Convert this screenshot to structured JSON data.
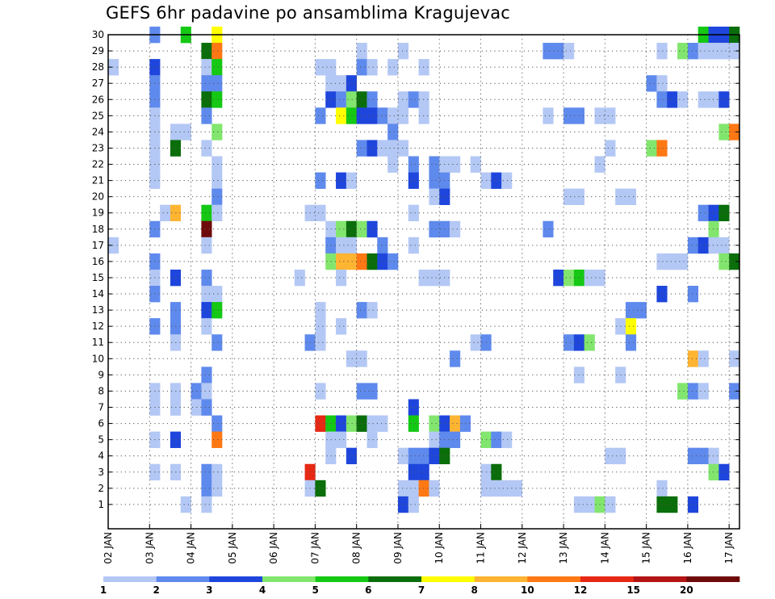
{
  "chart_data": {
    "type": "heatmap",
    "title": "GEFS 6hr padavine po ansamblima Kragujevac",
    "xlabel": "",
    "ylabel": "",
    "x_ticks": [
      "02 JAN",
      "03 JAN",
      "04 JAN",
      "05 JAN",
      "06 JAN",
      "07 JAN",
      "08 JAN",
      "09 JAN",
      "10 JAN",
      "11 JAN",
      "12 JAN",
      "13 JAN",
      "14 JAN",
      "15 JAN",
      "16 JAN",
      "17 JAN"
    ],
    "y_ticks": [
      "1",
      "2",
      "3",
      "4",
      "5",
      "6",
      "7",
      "8",
      "9",
      "10",
      "11",
      "12",
      "13",
      "14",
      "15",
      "16",
      "17",
      "18",
      "19",
      "20",
      "21",
      "22",
      "23",
      "24",
      "25",
      "26",
      "27",
      "28",
      "29",
      "30"
    ],
    "y_range": [
      0,
      30
    ],
    "grid": true,
    "time_steps": 61,
    "levels": [
      "1",
      "2",
      "3",
      "4",
      "5",
      "6",
      "7",
      "8",
      "10",
      "12",
      "15",
      "20"
    ],
    "colors": [
      "#b4c8f5",
      "#5f8aed",
      "#1e46dc",
      "#82e66e",
      "#14c814",
      "#0a6e0a",
      "#ffff00",
      "#ffb432",
      "#ff7814",
      "#e62814",
      "#b41414",
      "#6e0a0a"
    ],
    "cells": [
      [
        30,
        4,
        1
      ],
      [
        30,
        7,
        4
      ],
      [
        30,
        10,
        6
      ],
      [
        30,
        57,
        4
      ],
      [
        30,
        58,
        2
      ],
      [
        30,
        59,
        2
      ],
      [
        30,
        60,
        5
      ],
      [
        29,
        9,
        5
      ],
      [
        29,
        10,
        8
      ],
      [
        29,
        24,
        0
      ],
      [
        29,
        28,
        0
      ],
      [
        29,
        42,
        1
      ],
      [
        29,
        43,
        1
      ],
      [
        29,
        44,
        0
      ],
      [
        29,
        53,
        0
      ],
      [
        29,
        55,
        3
      ],
      [
        29,
        56,
        1
      ],
      [
        29,
        57,
        0
      ],
      [
        29,
        58,
        0
      ],
      [
        29,
        59,
        0
      ],
      [
        29,
        60,
        0
      ],
      [
        28,
        0,
        0
      ],
      [
        28,
        4,
        2
      ],
      [
        28,
        9,
        0
      ],
      [
        28,
        10,
        4
      ],
      [
        28,
        20,
        0
      ],
      [
        28,
        21,
        0
      ],
      [
        28,
        24,
        1
      ],
      [
        28,
        25,
        0
      ],
      [
        28,
        27,
        0
      ],
      [
        28,
        30,
        0
      ],
      [
        27,
        4,
        1
      ],
      [
        27,
        9,
        1
      ],
      [
        27,
        10,
        1
      ],
      [
        27,
        21,
        0
      ],
      [
        27,
        22,
        0
      ],
      [
        27,
        23,
        2
      ],
      [
        27,
        52,
        1
      ],
      [
        27,
        53,
        0
      ],
      [
        26,
        4,
        1
      ],
      [
        26,
        9,
        5
      ],
      [
        26,
        10,
        4
      ],
      [
        26,
        21,
        2
      ],
      [
        26,
        22,
        1
      ],
      [
        26,
        23,
        3
      ],
      [
        26,
        24,
        5
      ],
      [
        26,
        25,
        1
      ],
      [
        26,
        28,
        0
      ],
      [
        26,
        29,
        1
      ],
      [
        26,
        30,
        0
      ],
      [
        26,
        53,
        1
      ],
      [
        26,
        54,
        2
      ],
      [
        26,
        55,
        0
      ],
      [
        26,
        57,
        0
      ],
      [
        26,
        58,
        0
      ],
      [
        26,
        59,
        2
      ],
      [
        25,
        4,
        0
      ],
      [
        25,
        9,
        1
      ],
      [
        25,
        20,
        1
      ],
      [
        25,
        22,
        6
      ],
      [
        25,
        23,
        4
      ],
      [
        25,
        24,
        2
      ],
      [
        25,
        25,
        2
      ],
      [
        25,
        26,
        1
      ],
      [
        25,
        27,
        0
      ],
      [
        25,
        28,
        0
      ],
      [
        25,
        30,
        0
      ],
      [
        25,
        42,
        0
      ],
      [
        25,
        44,
        1
      ],
      [
        25,
        45,
        1
      ],
      [
        25,
        47,
        0
      ],
      [
        25,
        48,
        0
      ],
      [
        24,
        4,
        0
      ],
      [
        24,
        6,
        0
      ],
      [
        24,
        7,
        0
      ],
      [
        24,
        10,
        3
      ],
      [
        24,
        27,
        1
      ],
      [
        24,
        59,
        3
      ],
      [
        24,
        60,
        8
      ],
      [
        23,
        4,
        0
      ],
      [
        23,
        6,
        5
      ],
      [
        23,
        9,
        0
      ],
      [
        23,
        24,
        1
      ],
      [
        23,
        25,
        2
      ],
      [
        23,
        26,
        0
      ],
      [
        23,
        27,
        0
      ],
      [
        23,
        28,
        0
      ],
      [
        23,
        48,
        0
      ],
      [
        23,
        52,
        3
      ],
      [
        23,
        53,
        8
      ],
      [
        22,
        4,
        0
      ],
      [
        22,
        10,
        0
      ],
      [
        22,
        27,
        0
      ],
      [
        22,
        29,
        1
      ],
      [
        22,
        31,
        1
      ],
      [
        22,
        32,
        0
      ],
      [
        22,
        33,
        0
      ],
      [
        22,
        35,
        0
      ],
      [
        22,
        47,
        0
      ],
      [
        21,
        4,
        0
      ],
      [
        21,
        10,
        0
      ],
      [
        21,
        20,
        1
      ],
      [
        21,
        22,
        2
      ],
      [
        21,
        23,
        0
      ],
      [
        21,
        29,
        2
      ],
      [
        21,
        31,
        1
      ],
      [
        21,
        32,
        1
      ],
      [
        21,
        36,
        0
      ],
      [
        21,
        37,
        2
      ],
      [
        21,
        38,
        0
      ],
      [
        20,
        10,
        1
      ],
      [
        20,
        31,
        0
      ],
      [
        20,
        32,
        2
      ],
      [
        20,
        44,
        0
      ],
      [
        20,
        45,
        0
      ],
      [
        20,
        49,
        0
      ],
      [
        20,
        50,
        0
      ],
      [
        19,
        5,
        0
      ],
      [
        19,
        6,
        7
      ],
      [
        19,
        9,
        4
      ],
      [
        19,
        10,
        0
      ],
      [
        19,
        19,
        0
      ],
      [
        19,
        20,
        0
      ],
      [
        19,
        29,
        0
      ],
      [
        19,
        57,
        1
      ],
      [
        19,
        58,
        2
      ],
      [
        19,
        59,
        5
      ],
      [
        18,
        4,
        1
      ],
      [
        18,
        9,
        11
      ],
      [
        18,
        21,
        0
      ],
      [
        18,
        22,
        3
      ],
      [
        18,
        23,
        5
      ],
      [
        18,
        24,
        3
      ],
      [
        18,
        25,
        2
      ],
      [
        18,
        31,
        1
      ],
      [
        18,
        32,
        1
      ],
      [
        18,
        33,
        0
      ],
      [
        18,
        42,
        1
      ],
      [
        18,
        58,
        3
      ],
      [
        17,
        0,
        0
      ],
      [
        17,
        9,
        0
      ],
      [
        17,
        21,
        1
      ],
      [
        17,
        22,
        0
      ],
      [
        17,
        23,
        0
      ],
      [
        17,
        26,
        1
      ],
      [
        17,
        29,
        0
      ],
      [
        17,
        56,
        1
      ],
      [
        17,
        57,
        2
      ],
      [
        17,
        58,
        0
      ],
      [
        17,
        59,
        0
      ],
      [
        16,
        4,
        1
      ],
      [
        16,
        21,
        3
      ],
      [
        16,
        22,
        7
      ],
      [
        16,
        23,
        7
      ],
      [
        16,
        24,
        8
      ],
      [
        16,
        25,
        5
      ],
      [
        16,
        26,
        2
      ],
      [
        16,
        27,
        1
      ],
      [
        16,
        53,
        0
      ],
      [
        16,
        54,
        0
      ],
      [
        16,
        55,
        0
      ],
      [
        16,
        59,
        3
      ],
      [
        16,
        60,
        5
      ],
      [
        15,
        4,
        0
      ],
      [
        15,
        6,
        2
      ],
      [
        15,
        9,
        1
      ],
      [
        15,
        18,
        0
      ],
      [
        15,
        22,
        0
      ],
      [
        15,
        30,
        0
      ],
      [
        15,
        31,
        0
      ],
      [
        15,
        32,
        0
      ],
      [
        15,
        43,
        2
      ],
      [
        15,
        44,
        3
      ],
      [
        15,
        45,
        4
      ],
      [
        15,
        46,
        0
      ],
      [
        15,
        47,
        0
      ],
      [
        14,
        4,
        1
      ],
      [
        14,
        9,
        0
      ],
      [
        14,
        10,
        0
      ],
      [
        14,
        53,
        2
      ],
      [
        14,
        56,
        1
      ],
      [
        13,
        6,
        1
      ],
      [
        13,
        9,
        2
      ],
      [
        13,
        10,
        4
      ],
      [
        13,
        20,
        0
      ],
      [
        13,
        24,
        1
      ],
      [
        13,
        25,
        0
      ],
      [
        13,
        50,
        1
      ],
      [
        13,
        51,
        1
      ],
      [
        12,
        4,
        1
      ],
      [
        12,
        6,
        1
      ],
      [
        12,
        9,
        0
      ],
      [
        12,
        20,
        0
      ],
      [
        12,
        22,
        0
      ],
      [
        12,
        49,
        0
      ],
      [
        12,
        50,
        6
      ],
      [
        11,
        6,
        0
      ],
      [
        11,
        10,
        1
      ],
      [
        11,
        19,
        1
      ],
      [
        11,
        20,
        0
      ],
      [
        11,
        35,
        0
      ],
      [
        11,
        36,
        1
      ],
      [
        11,
        44,
        1
      ],
      [
        11,
        45,
        2
      ],
      [
        11,
        46,
        3
      ],
      [
        11,
        50,
        1
      ],
      [
        10,
        23,
        0
      ],
      [
        10,
        24,
        0
      ],
      [
        10,
        33,
        1
      ],
      [
        10,
        56,
        7
      ],
      [
        10,
        57,
        0
      ],
      [
        10,
        60,
        0
      ],
      [
        9,
        9,
        1
      ],
      [
        9,
        45,
        0
      ],
      [
        9,
        49,
        0
      ],
      [
        8,
        4,
        0
      ],
      [
        8,
        6,
        0
      ],
      [
        8,
        8,
        1
      ],
      [
        8,
        9,
        0
      ],
      [
        8,
        20,
        0
      ],
      [
        8,
        24,
        1
      ],
      [
        8,
        25,
        1
      ],
      [
        8,
        55,
        3
      ],
      [
        8,
        56,
        1
      ],
      [
        8,
        57,
        0
      ],
      [
        8,
        60,
        1
      ],
      [
        7,
        4,
        0
      ],
      [
        7,
        6,
        0
      ],
      [
        7,
        8,
        0
      ],
      [
        7,
        9,
        1
      ],
      [
        7,
        29,
        2
      ],
      [
        6,
        10,
        1
      ],
      [
        6,
        20,
        9
      ],
      [
        6,
        21,
        4
      ],
      [
        6,
        22,
        2
      ],
      [
        6,
        23,
        3
      ],
      [
        6,
        24,
        5
      ],
      [
        6,
        25,
        0
      ],
      [
        6,
        26,
        0
      ],
      [
        6,
        29,
        4
      ],
      [
        6,
        31,
        3
      ],
      [
        6,
        32,
        2
      ],
      [
        6,
        33,
        7
      ],
      [
        6,
        34,
        1
      ],
      [
        5,
        4,
        0
      ],
      [
        5,
        6,
        2
      ],
      [
        5,
        10,
        8
      ],
      [
        5,
        21,
        0
      ],
      [
        5,
        22,
        0
      ],
      [
        5,
        25,
        0
      ],
      [
        5,
        31,
        0
      ],
      [
        5,
        32,
        1
      ],
      [
        5,
        33,
        1
      ],
      [
        5,
        36,
        3
      ],
      [
        5,
        37,
        1
      ],
      [
        5,
        38,
        0
      ],
      [
        4,
        21,
        0
      ],
      [
        4,
        23,
        2
      ],
      [
        4,
        28,
        0
      ],
      [
        4,
        29,
        1
      ],
      [
        4,
        30,
        1
      ],
      [
        4,
        31,
        2
      ],
      [
        4,
        32,
        5
      ],
      [
        4,
        48,
        0
      ],
      [
        4,
        49,
        0
      ],
      [
        4,
        56,
        1
      ],
      [
        4,
        57,
        1
      ],
      [
        4,
        58,
        0
      ],
      [
        3,
        4,
        0
      ],
      [
        3,
        6,
        0
      ],
      [
        3,
        9,
        1
      ],
      [
        3,
        10,
        0
      ],
      [
        3,
        19,
        9
      ],
      [
        3,
        29,
        2
      ],
      [
        3,
        30,
        2
      ],
      [
        3,
        36,
        0
      ],
      [
        3,
        37,
        5
      ],
      [
        3,
        58,
        3
      ],
      [
        3,
        59,
        2
      ],
      [
        2,
        9,
        1
      ],
      [
        2,
        10,
        0
      ],
      [
        2,
        19,
        0
      ],
      [
        2,
        20,
        5
      ],
      [
        2,
        28,
        0
      ],
      [
        2,
        29,
        0
      ],
      [
        2,
        30,
        8
      ],
      [
        2,
        31,
        0
      ],
      [
        2,
        36,
        0
      ],
      [
        2,
        37,
        0
      ],
      [
        2,
        38,
        0
      ],
      [
        2,
        39,
        0
      ],
      [
        2,
        53,
        0
      ],
      [
        1,
        7,
        0
      ],
      [
        1,
        9,
        0
      ],
      [
        1,
        28,
        2
      ],
      [
        1,
        29,
        0
      ],
      [
        1,
        45,
        0
      ],
      [
        1,
        46,
        0
      ],
      [
        1,
        47,
        3
      ],
      [
        1,
        48,
        0
      ],
      [
        1,
        53,
        5
      ],
      [
        1,
        54,
        5
      ],
      [
        1,
        56,
        2
      ]
    ]
  }
}
